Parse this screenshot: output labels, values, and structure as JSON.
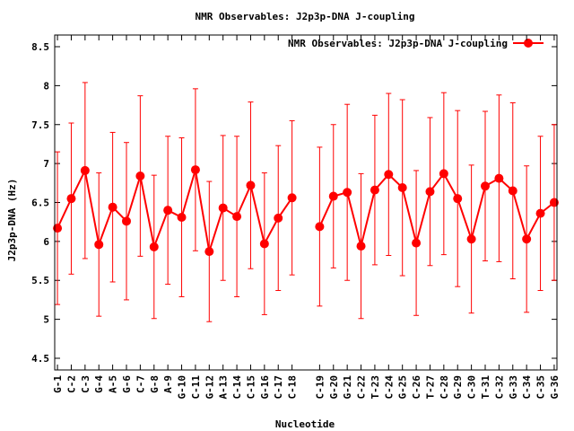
{
  "chart_data": {
    "type": "line",
    "title": "NMR Observables: J2p3p-DNA J-coupling",
    "xlabel": "Nucleotide",
    "ylabel": "J2p3p-DNA (Hz)",
    "ylim": [
      4.35,
      8.65
    ],
    "yticks": [
      "4.5",
      "5",
      "5.5",
      "6",
      "6.5",
      "7",
      "7.5",
      "8",
      "8.5"
    ],
    "grid": false,
    "legend_position": "top-right",
    "series": [
      {
        "name": "NMR Observables: J2p3p-DNA J-coupling",
        "color": "#ff0000",
        "points": [
          {
            "label": "G-1",
            "x": 1,
            "y": 6.17,
            "err": 0.98
          },
          {
            "label": "C-2",
            "x": 2,
            "y": 6.55,
            "err": 0.97
          },
          {
            "label": "C-3",
            "x": 3,
            "y": 6.91,
            "err": 1.13
          },
          {
            "label": "G-4",
            "x": 4,
            "y": 5.96,
            "err": 0.92
          },
          {
            "label": "A-5",
            "x": 5,
            "y": 6.44,
            "err": 0.96
          },
          {
            "label": "G-6",
            "x": 6,
            "y": 6.26,
            "err": 1.01
          },
          {
            "label": "C-7",
            "x": 7,
            "y": 6.84,
            "err": 1.03
          },
          {
            "label": "G-8",
            "x": 8,
            "y": 5.93,
            "err": 0.92
          },
          {
            "label": "A-9",
            "x": 9,
            "y": 6.4,
            "err": 0.95
          },
          {
            "label": "G-10",
            "x": 10,
            "y": 6.31,
            "err": 1.02
          },
          {
            "label": "C-11",
            "x": 11,
            "y": 6.92,
            "err": 1.04
          },
          {
            "label": "G-12",
            "x": 12,
            "y": 5.87,
            "err": 0.9
          },
          {
            "label": "A-13",
            "x": 13,
            "y": 6.43,
            "err": 0.93
          },
          {
            "label": "C-14",
            "x": 14,
            "y": 6.32,
            "err": 1.03
          },
          {
            "label": "C-15",
            "x": 15,
            "y": 6.72,
            "err": 1.07
          },
          {
            "label": "G-16",
            "x": 16,
            "y": 5.97,
            "err": 0.91
          },
          {
            "label": "C-17",
            "x": 17,
            "y": 6.3,
            "err": 0.93
          },
          {
            "label": "C-18",
            "x": 18,
            "y": 6.56,
            "err": 0.99
          },
          {
            "label": "C-19",
            "x": 20,
            "y": 6.19,
            "err": 1.02
          },
          {
            "label": "G-20",
            "x": 21,
            "y": 6.58,
            "err": 0.92
          },
          {
            "label": "G-21",
            "x": 22,
            "y": 6.63,
            "err": 1.13
          },
          {
            "label": "C-22",
            "x": 23,
            "y": 5.94,
            "err": 0.93
          },
          {
            "label": "T-23",
            "x": 24,
            "y": 6.66,
            "err": 0.96
          },
          {
            "label": "C-24",
            "x": 25,
            "y": 6.86,
            "err": 1.04
          },
          {
            "label": "G-25",
            "x": 26,
            "y": 6.69,
            "err": 1.13
          },
          {
            "label": "C-26",
            "x": 27,
            "y": 5.98,
            "err": 0.93
          },
          {
            "label": "T-27",
            "x": 28,
            "y": 6.64,
            "err": 0.95
          },
          {
            "label": "C-28",
            "x": 29,
            "y": 6.87,
            "err": 1.04
          },
          {
            "label": "G-29",
            "x": 30,
            "y": 6.55,
            "err": 1.13
          },
          {
            "label": "C-30",
            "x": 31,
            "y": 6.03,
            "err": 0.95
          },
          {
            "label": "T-31",
            "x": 32,
            "y": 6.71,
            "err": 0.96
          },
          {
            "label": "C-32",
            "x": 33,
            "y": 6.81,
            "err": 1.07
          },
          {
            "label": "G-33",
            "x": 34,
            "y": 6.65,
            "err": 1.13
          },
          {
            "label": "C-34",
            "x": 35,
            "y": 6.03,
            "err": 0.94
          },
          {
            "label": "C-35",
            "x": 36,
            "y": 6.36,
            "err": 0.99
          },
          {
            "label": "G-36",
            "x": 37,
            "y": 6.5,
            "err": 1.0
          }
        ]
      }
    ],
    "xlim": [
      0.8,
      37.2
    ]
  }
}
